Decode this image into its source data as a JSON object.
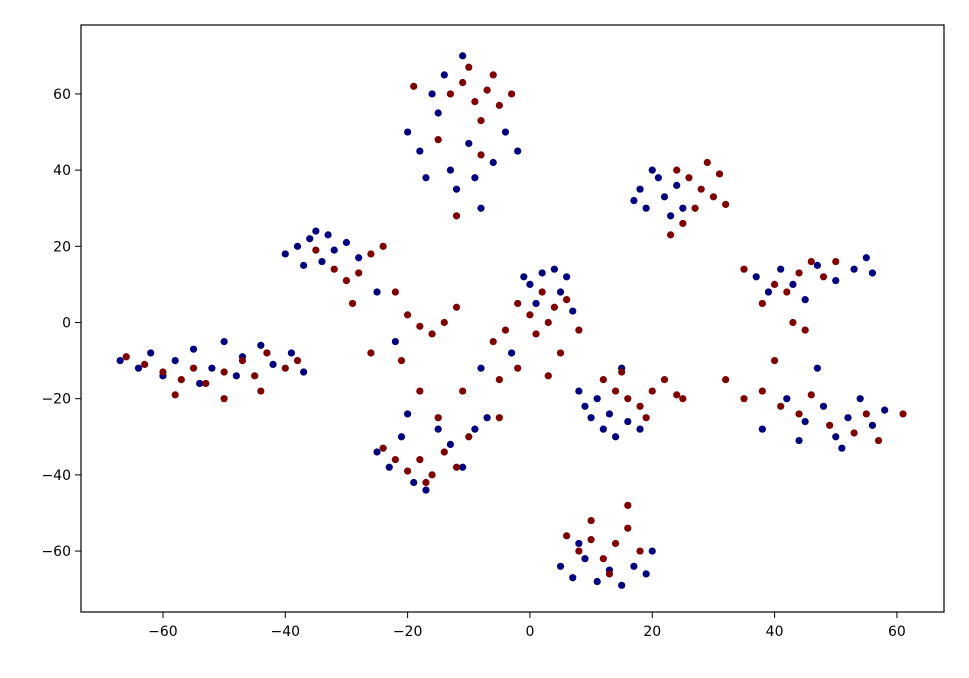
{
  "chart_data": {
    "type": "scatter",
    "xlim": [
      -73.4,
      67.7
    ],
    "ylim": [
      -76,
      78.1
    ],
    "xticks": [
      {
        "value": -60,
        "label": "−60"
      },
      {
        "value": -40,
        "label": "−40"
      },
      {
        "value": -20,
        "label": "−20"
      },
      0,
      20,
      40,
      60
    ],
    "yticks": [
      {
        "value": -60,
        "label": "−60"
      },
      {
        "value": -40,
        "label": "−40"
      },
      {
        "value": -20,
        "label": "−20"
      },
      0,
      20,
      40,
      60
    ],
    "series": [
      {
        "color": "#00007f",
        "x": [
          -20,
          -18,
          -15,
          -13,
          -12,
          -10,
          -8,
          -6,
          -4,
          -2,
          -14,
          -11,
          -16,
          -9,
          -17,
          18,
          19,
          21,
          22,
          23,
          20,
          24,
          25,
          17,
          37,
          39,
          41,
          43,
          47,
          50,
          53,
          56,
          55,
          45,
          -40,
          -38,
          -36,
          -34,
          -33,
          -32,
          -30,
          -37,
          -28,
          -35,
          -25,
          -22,
          -67,
          -64,
          -62,
          -60,
          -58,
          -55,
          -52,
          -50,
          -47,
          -44,
          -42,
          -39,
          -37,
          -54,
          -48,
          0,
          2,
          4,
          6,
          5,
          1,
          -1,
          7,
          -3,
          -8,
          9,
          10,
          12,
          14,
          13,
          16,
          8,
          11,
          15,
          18,
          38,
          42,
          45,
          48,
          50,
          52,
          54,
          56,
          58,
          47,
          51,
          44,
          -25,
          -23,
          -21,
          -19,
          -17,
          -15,
          -13,
          -11,
          -9,
          -7,
          -20,
          5,
          7,
          9,
          11,
          13,
          15,
          17,
          19,
          20,
          8
        ],
        "values": [
          50,
          45,
          55,
          40,
          35,
          47,
          30,
          42,
          50,
          45,
          65,
          70,
          60,
          38,
          38,
          35,
          30,
          38,
          33,
          28,
          40,
          36,
          30,
          32,
          12,
          8,
          14,
          10,
          15,
          11,
          14,
          13,
          17,
          6,
          18,
          20,
          22,
          16,
          23,
          19,
          21,
          15,
          17,
          24,
          8,
          -5,
          -10,
          -12,
          -8,
          -14,
          -10,
          -7,
          -12,
          -5,
          -9,
          -6,
          -11,
          -8,
          -13,
          -16,
          -14,
          10,
          13,
          14,
          12,
          8,
          5,
          12,
          3,
          -8,
          -12,
          -22,
          -25,
          -28,
          -30,
          -24,
          -26,
          -18,
          -20,
          -12,
          -28,
          -28,
          -20,
          -26,
          -22,
          -30,
          -25,
          -20,
          -27,
          -23,
          -12,
          -33,
          -31,
          -34,
          -38,
          -30,
          -42,
          -44,
          -28,
          -32,
          -38,
          -28,
          -25,
          -24,
          -64,
          -67,
          -62,
          -68,
          -65,
          -69,
          -64,
          -66,
          -60,
          -58
        ]
      },
      {
        "color": "#7f0000",
        "x": [
          -13,
          -11,
          -9,
          -7,
          -5,
          -3,
          -8,
          -10,
          -6,
          -15,
          -19,
          -12,
          -8,
          24,
          26,
          28,
          30,
          31,
          29,
          27,
          25,
          32,
          23,
          35,
          38,
          40,
          42,
          44,
          46,
          48,
          50,
          43,
          45,
          -35,
          -32,
          -30,
          -28,
          -26,
          -24,
          -29,
          -22,
          -20,
          -18,
          -16,
          -14,
          -12,
          -26,
          -21,
          -66,
          -63,
          -60,
          -57,
          -55,
          -53,
          -50,
          -47,
          -45,
          -43,
          -40,
          -38,
          -58,
          -50,
          -44,
          -2,
          0,
          2,
          4,
          6,
          3,
          1,
          5,
          -4,
          -6,
          -2,
          3,
          -5,
          8,
          12,
          14,
          16,
          18,
          20,
          22,
          24,
          15,
          19,
          25,
          35,
          38,
          41,
          44,
          46,
          49,
          53,
          55,
          57,
          61,
          32,
          40,
          -24,
          -22,
          -20,
          -18,
          -16,
          -14,
          -12,
          -10,
          -15,
          -18,
          -17,
          -11,
          -5,
          6,
          8,
          10,
          12,
          14,
          16,
          18,
          10,
          13,
          16
        ],
        "values": [
          60,
          63,
          58,
          61,
          57,
          60,
          53,
          67,
          65,
          48,
          62,
          28,
          44,
          40,
          38,
          35,
          33,
          39,
          42,
          30,
          26,
          31,
          23,
          14,
          5,
          10,
          8,
          13,
          16,
          12,
          16,
          0,
          -2,
          19,
          14,
          11,
          13,
          18,
          20,
          5,
          8,
          2,
          -1,
          -3,
          0,
          4,
          -8,
          -10,
          -9,
          -11,
          -13,
          -15,
          -12,
          -16,
          -13,
          -10,
          -14,
          -8,
          -12,
          -10,
          -19,
          -20,
          -18,
          5,
          2,
          8,
          4,
          6,
          0,
          -3,
          -8,
          -2,
          -5,
          -12,
          -14,
          -15,
          -2,
          -15,
          -18,
          -20,
          -22,
          -18,
          -15,
          -19,
          -13,
          -25,
          -20,
          -20,
          -18,
          -22,
          -24,
          -19,
          -27,
          -29,
          -24,
          -31,
          -24,
          -15,
          -10,
          -33,
          -36,
          -39,
          -36,
          -40,
          -34,
          -38,
          -30,
          -25,
          -18,
          -42,
          -18,
          -25,
          -56,
          -60,
          -57,
          -62,
          -58,
          -54,
          -60,
          -52,
          -66,
          -48
        ]
      }
    ]
  }
}
